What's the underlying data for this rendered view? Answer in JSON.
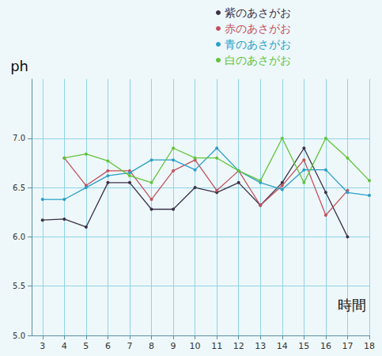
{
  "chart_data": {
    "type": "line",
    "x_label": "時間",
    "y_label": "ph",
    "x": [
      3,
      4,
      5,
      6,
      7,
      8,
      9,
      10,
      11,
      12,
      13,
      14,
      15,
      16,
      17,
      18
    ],
    "xlim": [
      2.5,
      18
    ],
    "xticks": [
      3,
      4,
      5,
      6,
      7,
      8,
      9,
      10,
      11,
      12,
      13,
      14,
      15,
      16,
      17,
      18
    ],
    "ylim": [
      5.0,
      7.6
    ],
    "yticks": [
      {
        "value": 5.0,
        "label": "5.0"
      },
      {
        "value": 5.5,
        "label": "5.5"
      },
      {
        "value": 6.0,
        "label": "6.0"
      },
      {
        "value": 6.5,
        "label": "6.5"
      },
      {
        "value": 7.0,
        "label": "7.0"
      }
    ],
    "grid": true,
    "legend": "top-right",
    "marker": "circle",
    "series": [
      {
        "name": "紫のあさがお",
        "color": "#3b3048",
        "values": [
          6.17,
          6.18,
          6.1,
          6.55,
          6.55,
          6.28,
          6.28,
          6.5,
          6.45,
          6.55,
          6.32,
          6.55,
          6.9,
          6.45,
          6.0,
          null
        ]
      },
      {
        "name": "赤のあさがお",
        "color": "#c4505c",
        "values": [
          null,
          6.8,
          6.52,
          6.67,
          6.67,
          6.38,
          6.67,
          6.78,
          6.47,
          6.67,
          6.32,
          6.52,
          6.78,
          6.22,
          6.47,
          null
        ]
      },
      {
        "name": "青のあさがお",
        "color": "#2a9fc8",
        "values": [
          6.38,
          6.38,
          6.5,
          6.62,
          6.65,
          6.78,
          6.78,
          6.68,
          6.9,
          6.67,
          6.55,
          6.48,
          6.68,
          6.68,
          6.45,
          6.42
        ]
      },
      {
        "name": "白のあさがお",
        "color": "#62c43a",
        "values": [
          null,
          6.8,
          6.84,
          6.77,
          6.62,
          6.55,
          6.9,
          6.8,
          6.8,
          6.67,
          6.57,
          7.0,
          6.55,
          7.0,
          6.8,
          6.57
        ]
      }
    ]
  }
}
